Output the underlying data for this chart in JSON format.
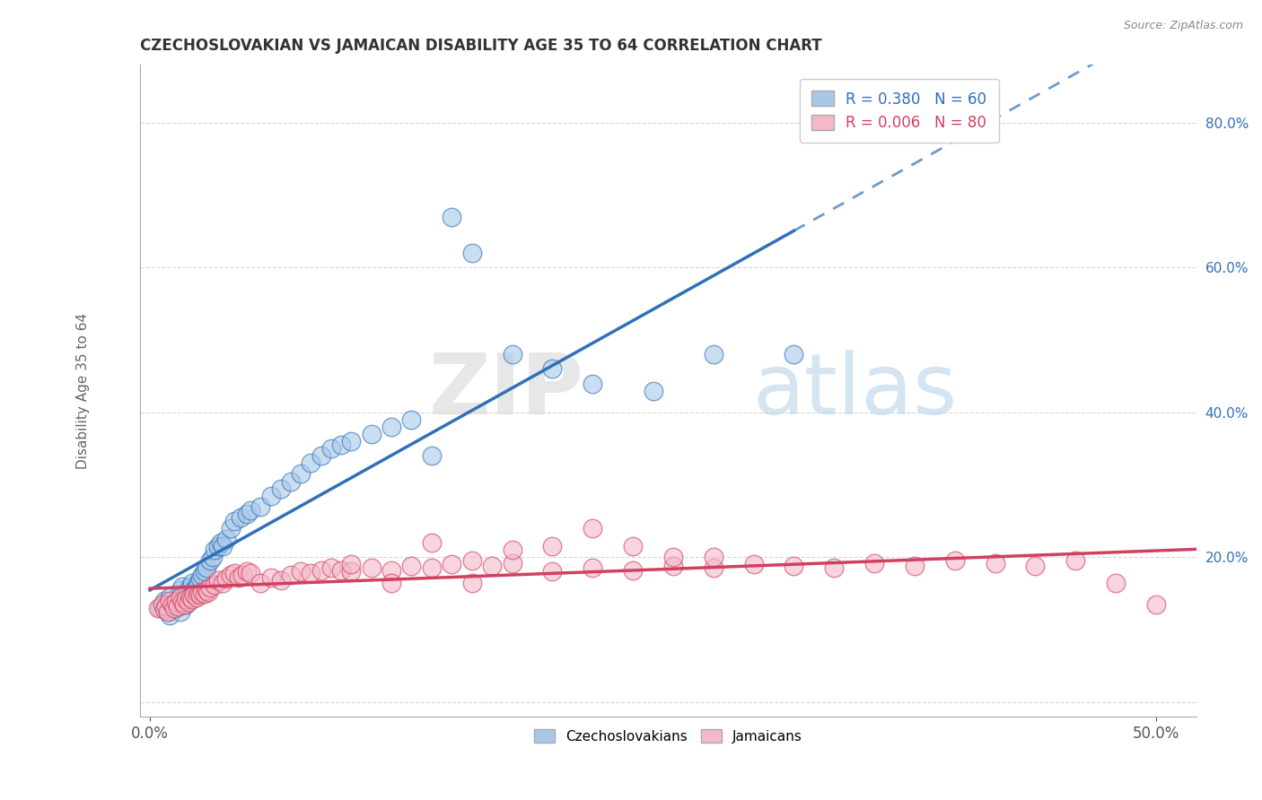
{
  "title": "CZECHOSLOVAKIAN VS JAMAICAN DISABILITY AGE 35 TO 64 CORRELATION CHART",
  "source": "Source: ZipAtlas.com",
  "ylabel": "Disability Age 35 to 64",
  "xlim": [
    -0.005,
    0.52
  ],
  "ylim": [
    -0.02,
    0.88
  ],
  "ytick_positions": [
    0.0,
    0.2,
    0.4,
    0.6,
    0.8
  ],
  "ytick_labels": [
    "",
    "20.0%",
    "40.0%",
    "60.0%",
    "80.0%"
  ],
  "xtick_positions": [
    0.0,
    0.5
  ],
  "xtick_labels": [
    "0.0%",
    "50.0%"
  ],
  "legend_r1": "R = 0.380",
  "legend_n1": "N = 60",
  "legend_r2": "R = 0.006",
  "legend_n2": "N = 80",
  "color_czech": "#a8c8e8",
  "color_jamaica": "#f4b8c8",
  "trendline_czech_color": "#3070b8",
  "trendline_jamaica_color": "#d04060",
  "background_color": "#ffffff",
  "watermark_zip": "ZIP",
  "watermark_atlas": "atlas",
  "czech_x": [
    0.005,
    0.007,
    0.008,
    0.009,
    0.01,
    0.01,
    0.012,
    0.013,
    0.014,
    0.015,
    0.015,
    0.016,
    0.017,
    0.018,
    0.018,
    0.019,
    0.02,
    0.02,
    0.021,
    0.022,
    0.023,
    0.024,
    0.025,
    0.026,
    0.027,
    0.028,
    0.03,
    0.031,
    0.032,
    0.034,
    0.035,
    0.036,
    0.038,
    0.04,
    0.042,
    0.045,
    0.048,
    0.05,
    0.055,
    0.06,
    0.065,
    0.07,
    0.075,
    0.08,
    0.085,
    0.09,
    0.095,
    0.1,
    0.11,
    0.12,
    0.13,
    0.14,
    0.15,
    0.16,
    0.18,
    0.2,
    0.22,
    0.25,
    0.28,
    0.32
  ],
  "czech_y": [
    0.13,
    0.14,
    0.135,
    0.125,
    0.12,
    0.145,
    0.135,
    0.13,
    0.14,
    0.155,
    0.125,
    0.16,
    0.145,
    0.15,
    0.135,
    0.155,
    0.16,
    0.145,
    0.165,
    0.155,
    0.16,
    0.165,
    0.17,
    0.175,
    0.18,
    0.185,
    0.195,
    0.2,
    0.21,
    0.215,
    0.22,
    0.215,
    0.225,
    0.24,
    0.25,
    0.255,
    0.26,
    0.265,
    0.27,
    0.285,
    0.295,
    0.305,
    0.315,
    0.33,
    0.34,
    0.35,
    0.355,
    0.36,
    0.37,
    0.38,
    0.39,
    0.34,
    0.67,
    0.62,
    0.48,
    0.46,
    0.44,
    0.43,
    0.48,
    0.48
  ],
  "jamaica_x": [
    0.004,
    0.006,
    0.007,
    0.008,
    0.009,
    0.01,
    0.011,
    0.012,
    0.013,
    0.014,
    0.015,
    0.016,
    0.017,
    0.018,
    0.019,
    0.02,
    0.021,
    0.022,
    0.023,
    0.024,
    0.025,
    0.026,
    0.027,
    0.028,
    0.029,
    0.03,
    0.032,
    0.034,
    0.036,
    0.038,
    0.04,
    0.042,
    0.044,
    0.046,
    0.048,
    0.05,
    0.055,
    0.06,
    0.065,
    0.07,
    0.075,
    0.08,
    0.085,
    0.09,
    0.095,
    0.1,
    0.11,
    0.12,
    0.13,
    0.14,
    0.15,
    0.16,
    0.17,
    0.18,
    0.2,
    0.22,
    0.24,
    0.26,
    0.28,
    0.3,
    0.32,
    0.34,
    0.36,
    0.38,
    0.4,
    0.42,
    0.44,
    0.46,
    0.48,
    0.5,
    0.1,
    0.12,
    0.14,
    0.16,
    0.18,
    0.2,
    0.22,
    0.24,
    0.26,
    0.28
  ],
  "jamaica_y": [
    0.13,
    0.135,
    0.128,
    0.132,
    0.125,
    0.14,
    0.135,
    0.13,
    0.138,
    0.132,
    0.145,
    0.138,
    0.135,
    0.142,
    0.138,
    0.145,
    0.142,
    0.148,
    0.145,
    0.15,
    0.148,
    0.152,
    0.15,
    0.155,
    0.152,
    0.158,
    0.162,
    0.168,
    0.165,
    0.17,
    0.175,
    0.178,
    0.172,
    0.175,
    0.18,
    0.178,
    0.165,
    0.172,
    0.168,
    0.175,
    0.18,
    0.178,
    0.182,
    0.185,
    0.182,
    0.18,
    0.185,
    0.182,
    0.188,
    0.185,
    0.19,
    0.165,
    0.188,
    0.192,
    0.18,
    0.185,
    0.182,
    0.188,
    0.185,
    0.19,
    0.188,
    0.185,
    0.192,
    0.188,
    0.195,
    0.192,
    0.188,
    0.195,
    0.165,
    0.135,
    0.19,
    0.165,
    0.22,
    0.195,
    0.21,
    0.215,
    0.24,
    0.215,
    0.2,
    0.2
  ]
}
